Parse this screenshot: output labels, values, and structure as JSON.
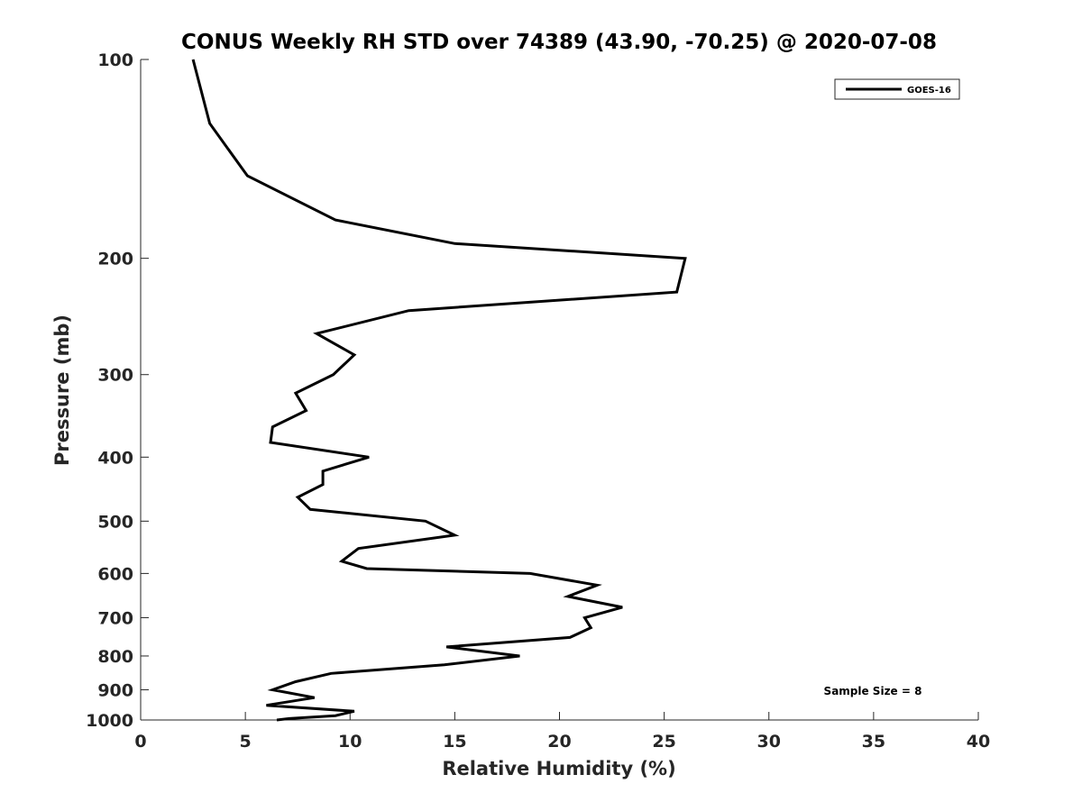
{
  "chart_data": {
    "type": "line",
    "title": "CONUS Weekly RH STD over 74389 (43.90, -70.25) @ 2020-07-08",
    "xlabel": "Relative Humidity (%)",
    "ylabel": "Pressure (mb)",
    "xlim": [
      0,
      40
    ],
    "ylim": [
      100,
      1000
    ],
    "y_scale": "log",
    "y_reversed": true,
    "x_ticks": [
      0,
      5,
      10,
      15,
      20,
      25,
      30,
      35,
      40
    ],
    "y_ticks": [
      100,
      200,
      300,
      400,
      500,
      600,
      700,
      800,
      900,
      1000
    ],
    "grid": false,
    "legend_position": "top-right",
    "annotation": "Sample Size = 8",
    "series": [
      {
        "name": "GOES-16",
        "color": "#000000",
        "points": [
          [
            2.5,
            100
          ],
          [
            3.3,
            125
          ],
          [
            5.1,
            150
          ],
          [
            9.3,
            175
          ],
          [
            15.0,
            190
          ],
          [
            26.0,
            200
          ],
          [
            25.6,
            225
          ],
          [
            12.8,
            240
          ],
          [
            8.4,
            260
          ],
          [
            10.2,
            280
          ],
          [
            9.2,
            300
          ],
          [
            7.4,
            320
          ],
          [
            7.9,
            340
          ],
          [
            6.3,
            360
          ],
          [
            6.2,
            380
          ],
          [
            10.9,
            400
          ],
          [
            8.7,
            420
          ],
          [
            8.7,
            440
          ],
          [
            7.5,
            460
          ],
          [
            8.1,
            480
          ],
          [
            13.6,
            500
          ],
          [
            15.0,
            525
          ],
          [
            10.4,
            550
          ],
          [
            9.6,
            575
          ],
          [
            10.8,
            590
          ],
          [
            18.6,
            600
          ],
          [
            21.8,
            625
          ],
          [
            20.4,
            650
          ],
          [
            23.0,
            675
          ],
          [
            21.2,
            700
          ],
          [
            21.5,
            725
          ],
          [
            20.5,
            750
          ],
          [
            14.6,
            775
          ],
          [
            18.1,
            800
          ],
          [
            14.5,
            825
          ],
          [
            9.1,
            850
          ],
          [
            7.4,
            875
          ],
          [
            6.3,
            900
          ],
          [
            8.3,
            925
          ],
          [
            6.0,
            950
          ],
          [
            10.2,
            970
          ],
          [
            9.3,
            985
          ],
          [
            7.1,
            995
          ],
          [
            6.5,
            1000
          ]
        ]
      }
    ]
  }
}
